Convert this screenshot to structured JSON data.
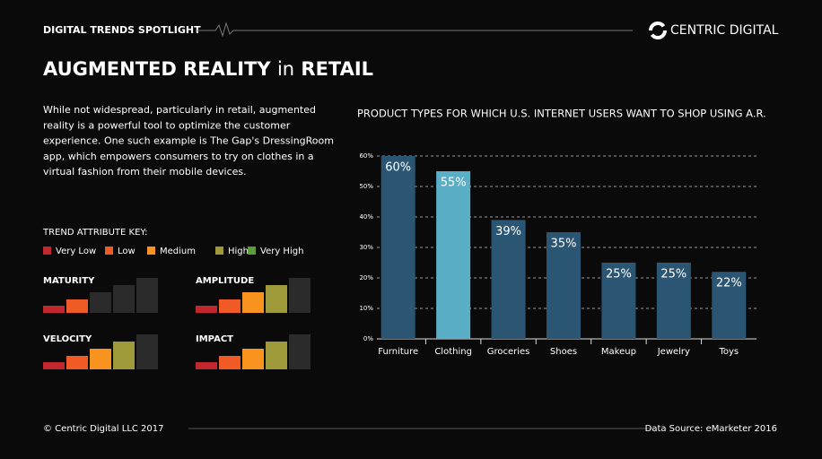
{
  "header": {
    "kicker": "DIGITAL TRENDS SPOTLIGHT",
    "brand": "CENTRIC DIGITAL"
  },
  "title": {
    "strong_1": "AUGMENTED REALITY",
    "light": "in",
    "strong_2": "RETAIL"
  },
  "intro": [
    "While not widespread, particularly in retail, augmented",
    "reality is a powerful tool to optimize the customer",
    "experience. One such example is The Gap's DressingRoom",
    "app, which empowers consumers to try on clothes in a",
    "virtual fashion from their mobile devices."
  ],
  "key": {
    "title": "TREND ATTRIBUTE KEY:",
    "items": [
      {
        "label": "Very Low",
        "color": "#c1272d"
      },
      {
        "label": "Low",
        "color": "#f05a24"
      },
      {
        "label": "Medium",
        "color": "#f7931e"
      },
      {
        "label": "High",
        "color": "#9e9a3a"
      },
      {
        "label": "Very High",
        "color": "#5e9b3c"
      }
    ],
    "off_color": "#2b2b2b",
    "attributes": [
      {
        "name": "MATURITY",
        "level": 2
      },
      {
        "name": "AMPLITUDE",
        "level": 4
      },
      {
        "name": "VELOCITY",
        "level": 4
      },
      {
        "name": "IMPACT",
        "level": 4
      }
    ]
  },
  "chart_data": {
    "type": "bar",
    "title": "PRODUCT TYPES FOR WHICH U.S. INTERNET USERS WANT TO SHOP USING A.R.",
    "categories": [
      "Furniture",
      "Clothing",
      "Groceries",
      "Shoes",
      "Makeup",
      "Jewelry",
      "Toys"
    ],
    "values": [
      60,
      55,
      39,
      35,
      25,
      25,
      22
    ],
    "value_labels": [
      "60%",
      "55%",
      "39%",
      "35%",
      "25%",
      "25%",
      "22%"
    ],
    "colors": [
      "#2a5673",
      "#5aaec6",
      "#2a5673",
      "#2a5673",
      "#2a5673",
      "#2a5673",
      "#2a5673"
    ],
    "ylim": [
      0,
      60
    ],
    "yticks": [
      {
        "value": 0,
        "label": "0%"
      },
      {
        "value": 10,
        "label": "10%"
      },
      {
        "value": 20,
        "label": "20%"
      },
      {
        "value": 30,
        "label": "30%"
      },
      {
        "value": 40,
        "label": "40%"
      },
      {
        "value": 50,
        "label": "50%"
      },
      {
        "value": 60,
        "label": "60%"
      }
    ],
    "grid": true
  },
  "footer": {
    "copyright": "© Centric Digital LLC 2017",
    "source": "Data Source: eMarketer 2016"
  }
}
